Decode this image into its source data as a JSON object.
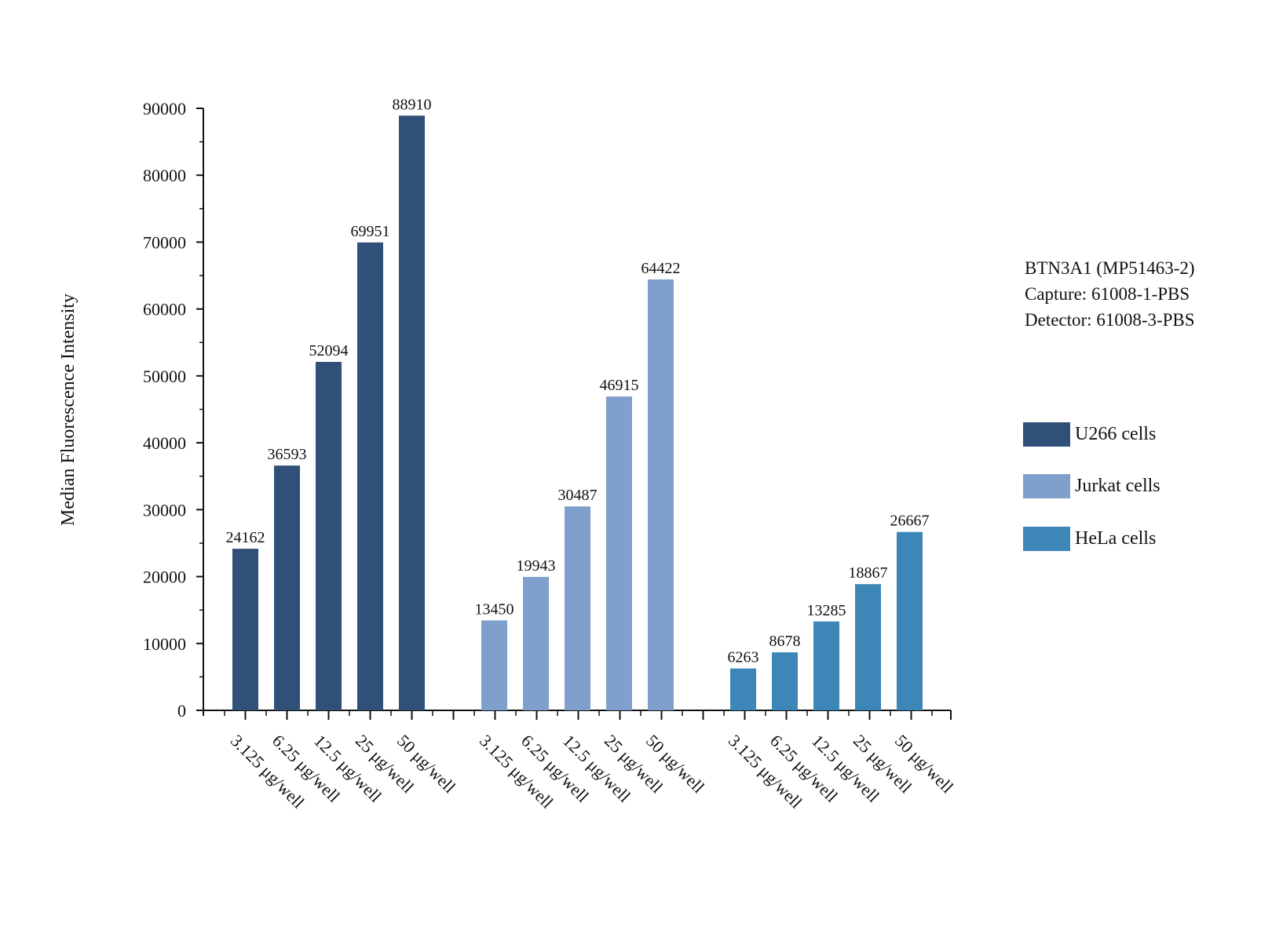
{
  "chart_data": {
    "type": "bar",
    "title": "",
    "xlabel": "",
    "ylabel": "Median Fluorescence Intensity",
    "ylim": [
      0,
      90000
    ],
    "y_ticks": [
      "0",
      "10000",
      "20000",
      "30000",
      "40000",
      "50000",
      "60000",
      "70000",
      "80000",
      "90000"
    ],
    "categories": [
      "3.125 μg/well",
      "6.25 μg/well",
      "12.5 μg/well",
      "25 μg/well",
      "50 μg/well"
    ],
    "series": [
      {
        "name": "U266 cells",
        "color": "#30507a",
        "values": [
          24162,
          36593,
          52094,
          69951,
          88910
        ]
      },
      {
        "name": "Jurkat cells",
        "color": "#7f9fcc",
        "values": [
          13450,
          19943,
          30487,
          46915,
          64422
        ]
      },
      {
        "name": "HeLa cells",
        "color": "#3d87b8",
        "values": [
          6263,
          8678,
          13285,
          18867,
          26667
        ]
      }
    ],
    "grid": false,
    "legend_position": "right"
  },
  "info": {
    "line1": "BTN3A1 (MP51463-2)",
    "line2": "Capture: 61008-1-PBS",
    "line3": "Detector: 61008-3-PBS"
  }
}
